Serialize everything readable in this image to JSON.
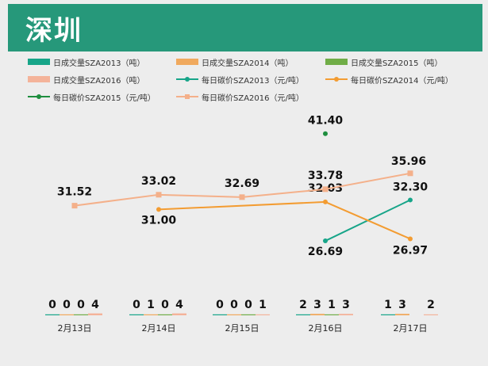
{
  "header": {
    "title": "深圳"
  },
  "chart_data": {
    "type": "bar+line",
    "categories": [
      "2月13日",
      "2月14日",
      "2月15日",
      "2月16日",
      "2月17日"
    ],
    "series": [
      {
        "name": "日成交量SZA2013（吨）",
        "kind": "bar",
        "color": "#17a589",
        "values": [
          0,
          0,
          0,
          2,
          1
        ]
      },
      {
        "name": "日成交量SZA2014（吨）",
        "kind": "bar",
        "color": "#f0a95e",
        "values": [
          0,
          1,
          0,
          3,
          3
        ]
      },
      {
        "name": "日成交量SZA2015（吨）",
        "kind": "bar",
        "color": "#70ad47",
        "values": [
          0,
          0,
          0,
          1,
          null
        ]
      },
      {
        "name": "日成交量SZA2016（吨）",
        "kind": "bar",
        "color": "#f4b39a",
        "values": [
          4,
          4,
          1,
          3,
          2
        ]
      },
      {
        "name": "每日碳价SZA2013（元/吨）",
        "kind": "line",
        "color": "#17a589",
        "values": [
          null,
          null,
          null,
          26.69,
          32.3
        ]
      },
      {
        "name": "每日碳价SZA2014（元/吨）",
        "kind": "line",
        "color": "#f39c32",
        "values": [
          null,
          31.0,
          null,
          32.03,
          26.97
        ]
      },
      {
        "name": "每日碳价SZA2015（元/吨）",
        "kind": "line",
        "color": "#1e8e3e",
        "values": [
          null,
          null,
          null,
          41.4,
          null
        ]
      },
      {
        "name": "每日碳价SZA2016（元/吨）",
        "kind": "line",
        "color": "#f4b08a",
        "values": [
          31.52,
          33.02,
          32.69,
          33.78,
          35.96
        ]
      }
    ]
  }
}
